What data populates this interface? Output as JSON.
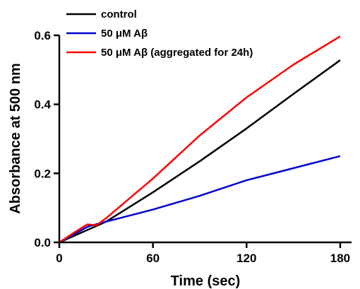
{
  "chart_data": {
    "type": "line",
    "title": "",
    "xlabel": "Time (sec)",
    "ylabel": "Absorbance at 500 nm",
    "xlim": [
      0,
      185
    ],
    "ylim": [
      0,
      0.6
    ],
    "xticks": [
      0,
      60,
      120,
      180
    ],
    "yticks": [
      0.0,
      0.2,
      0.4,
      0.6
    ],
    "xtick_labels": [
      "0",
      "60",
      "120",
      "180"
    ],
    "ytick_labels": [
      "0.0",
      "0.2",
      "0.4",
      "0.6"
    ],
    "grid": false,
    "legend_position": "top-left",
    "series": [
      {
        "name": "control",
        "color": "#000000",
        "x": [
          0,
          10,
          20,
          30,
          60,
          90,
          120,
          150,
          180
        ],
        "y": [
          0,
          0.02,
          0.04,
          0.06,
          0.145,
          0.235,
          0.33,
          0.43,
          0.528
        ]
      },
      {
        "name": "50 μM Aβ",
        "color": "#0000cc",
        "x": [
          0,
          10,
          18,
          20,
          30,
          60,
          90,
          120,
          150,
          180
        ],
        "y": [
          0,
          0.025,
          0.045,
          0.048,
          0.06,
          0.095,
          0.135,
          0.18,
          0.215,
          0.25
        ]
      },
      {
        "name": "50 μM Aβ (aggregated for 24h)",
        "color": "#ff0000",
        "x": [
          0,
          10,
          18,
          24,
          30,
          60,
          90,
          120,
          150,
          180
        ],
        "y": [
          0,
          0.03,
          0.052,
          0.05,
          0.07,
          0.185,
          0.31,
          0.42,
          0.515,
          0.597
        ]
      }
    ]
  }
}
